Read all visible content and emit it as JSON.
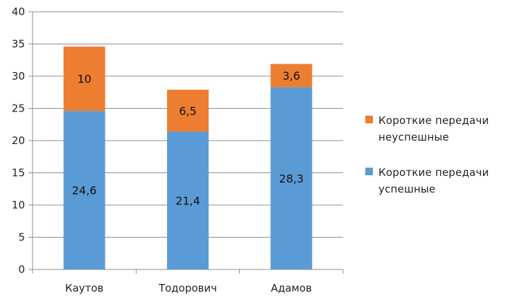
{
  "chart_data": {
    "type": "bar",
    "stacked": true,
    "categories": [
      "Каутов",
      "Тодорович",
      "Адамов"
    ],
    "series": [
      {
        "name": "Короткие передачи успешные",
        "values": [
          24.6,
          21.4,
          28.3
        ],
        "labels": [
          "24,6",
          "21,4",
          "28,3"
        ],
        "color": "#5b9bd5"
      },
      {
        "name": "Короткие передачи неуспешные",
        "values": [
          10,
          6.5,
          3.6
        ],
        "labels": [
          "10",
          "6,5",
          "3,6"
        ],
        "color": "#ed7d31"
      }
    ],
    "ylim": [
      0,
      40
    ],
    "yticks": [
      "0",
      "5",
      "10",
      "15",
      "20",
      "25",
      "30",
      "35",
      "40"
    ],
    "grid": true,
    "legend_position": "right",
    "legend": [
      {
        "lines": [
          "Короткие передачи",
          "неуспешные"
        ],
        "color": "#ed7d31"
      },
      {
        "lines": [
          "Короткие передачи",
          "успешные"
        ],
        "color": "#5b9bd5"
      }
    ]
  }
}
